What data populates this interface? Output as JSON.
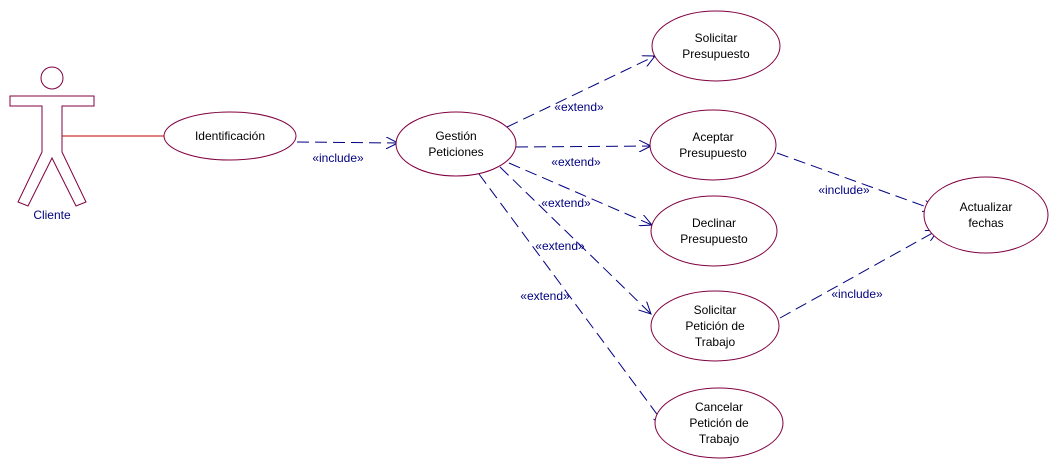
{
  "colors": {
    "outline": "#800040",
    "dependency": "#000080",
    "association": "#c00000",
    "use_case_text": "#000000",
    "stereotype_text": "#000080"
  },
  "actor": {
    "label": "Cliente"
  },
  "use_cases": {
    "identificacion": [
      "Identificación"
    ],
    "gestion": [
      "Gestión",
      "Peticiones"
    ],
    "solicitar_presupuesto": [
      "Solicitar",
      "Presupuesto"
    ],
    "aceptar_presupuesto": [
      "Aceptar",
      "Presupuesto"
    ],
    "declinar_presupuesto": [
      "Declinar",
      "Presupuesto"
    ],
    "solicitar_peticion": [
      "Solicitar",
      "Petición de",
      "Trabajo"
    ],
    "cancelar_peticion": [
      "Cancelar",
      "Petición de",
      "Trabajo"
    ],
    "actualizar_fechas": [
      "Actualizar",
      "fechas"
    ]
  },
  "relations": {
    "include_identificacion_gestion": "«include»",
    "extend_solicitar_presupuesto": "«extend»",
    "extend_aceptar_presupuesto": "«extend»",
    "extend_declinar_presupuesto": "«extend»",
    "extend_solicitar_peticion": "«extend»",
    "extend_cancelar_peticion": "«extend»",
    "include_aceptar_actualizar": "«include»",
    "include_solicitar_actualizar": "«include»"
  }
}
